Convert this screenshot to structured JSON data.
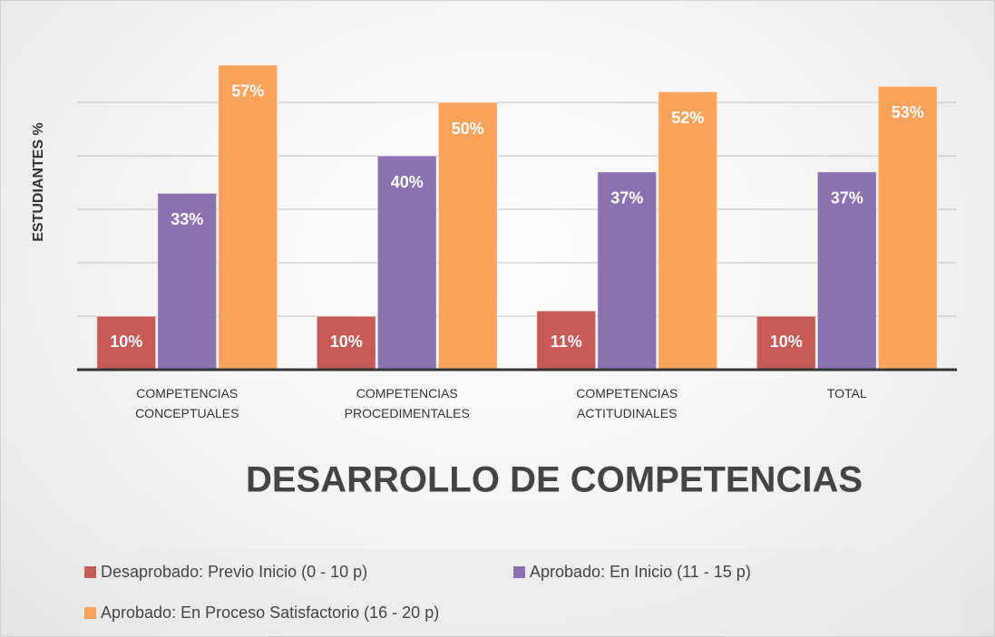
{
  "chart_data": {
    "type": "bar",
    "title": "DESARROLLO DE COMPETENCIAS",
    "y_label": "ESTUDIANTES %",
    "categories": [
      "COMPETENCIAS CONCEPTUALES",
      "COMPETENCIAS PROCEDIMENTALES",
      "COMPETENCIAS ACTITUDINALES",
      "TOTAL"
    ],
    "series": [
      {
        "name": "Desaprobado: Previo Inicio (0 - 10 p)",
        "color": "#c65a56",
        "values": [
          10,
          10,
          11,
          10
        ],
        "value_labels": [
          "10%",
          "10%",
          "11%",
          "10%"
        ]
      },
      {
        "name": "Aprobado: En Inicio (11 - 15 p)",
        "color": "#8c71b0",
        "values": [
          33,
          40,
          37,
          37
        ],
        "value_labels": [
          "33%",
          "40%",
          "37%",
          "37%"
        ]
      },
      {
        "name": "Aprobado: En Proceso Satisfactorio (16 - 20 p)",
        "color": "#f9a35c",
        "values": [
          57,
          50,
          52,
          53
        ],
        "value_labels": [
          "57%",
          "50%",
          "52%",
          "53%"
        ]
      }
    ],
    "ylim": [
      0,
      60
    ],
    "yticks": [
      10,
      20,
      30,
      40,
      50
    ],
    "grid": true
  }
}
